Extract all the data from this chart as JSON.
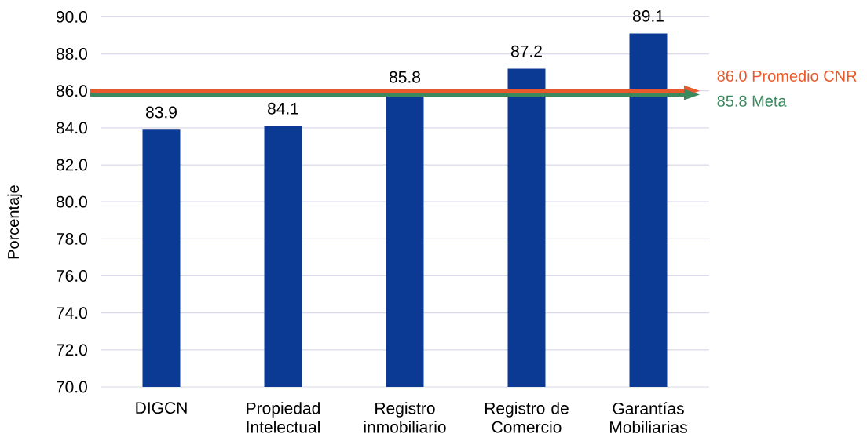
{
  "chart_data": {
    "type": "bar",
    "ylabel": "Porcentaje",
    "categories": [
      "DIGCN",
      "Propiedad Intelectual",
      "Registro inmobiliario",
      "Registro de Comercio",
      "Garantías Mobiliarias"
    ],
    "values": [
      83.9,
      84.1,
      85.8,
      87.2,
      89.1
    ],
    "color": "#0b3a94",
    "data_labels": true,
    "ylim": [
      70,
      90
    ],
    "yticks": [
      {
        "value": 70,
        "label": "70.0"
      },
      {
        "value": 72,
        "label": "72.0"
      },
      {
        "value": 74,
        "label": "74.0"
      },
      {
        "value": 76,
        "label": "76.0"
      },
      {
        "value": 78,
        "label": "78.0"
      },
      {
        "value": 80,
        "label": "80.0"
      },
      {
        "value": 82,
        "label": "82.0"
      },
      {
        "value": 84,
        "label": "84.0"
      },
      {
        "value": 86,
        "label": "86.0"
      },
      {
        "value": 88,
        "label": "88.0"
      },
      {
        "value": 90,
        "label": "90.0"
      }
    ],
    "grid": "y",
    "ref_lines": [
      {
        "axis": "y",
        "value": 86.0,
        "label": "86.0 Promedio CNR",
        "color": "#e8592b"
      },
      {
        "axis": "y",
        "value": 85.8,
        "label": "85.8 Meta",
        "color": "#3b8a5e"
      }
    ]
  }
}
